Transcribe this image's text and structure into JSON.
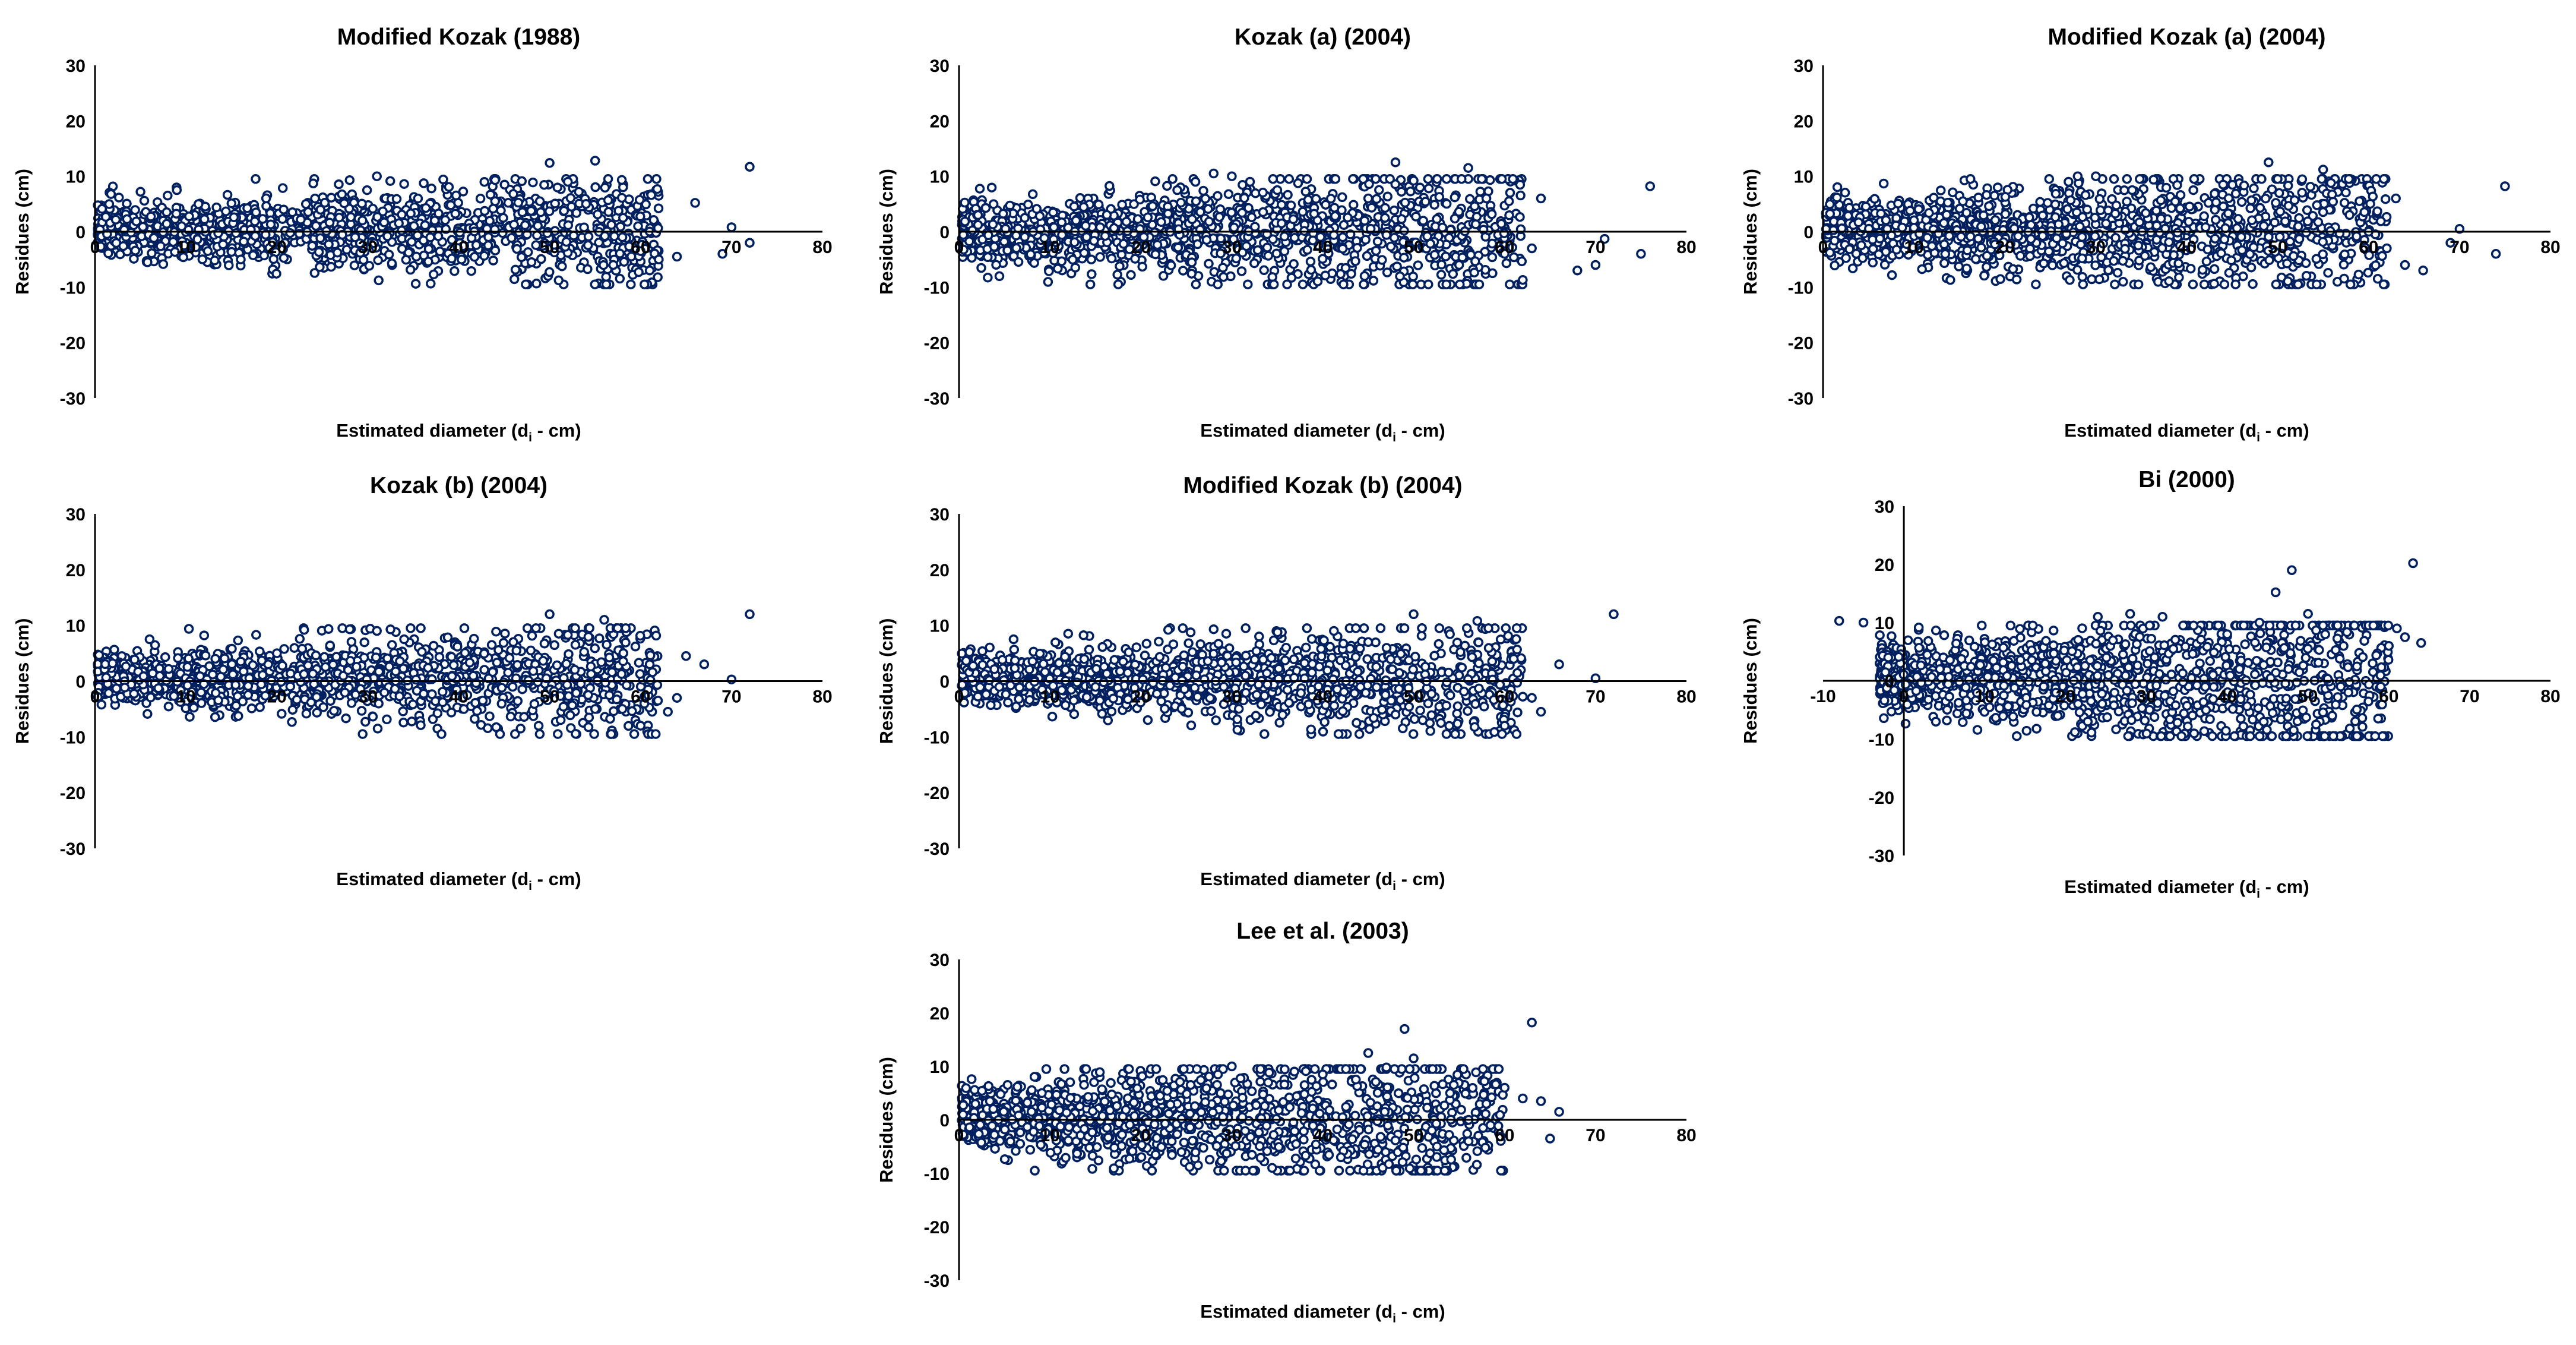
{
  "figure": {
    "point_color": "#002060",
    "axis_color": "#000000",
    "background": "#ffffff"
  },
  "chart_data": [
    {
      "id": "mk1988",
      "type": "scatter",
      "title": "Modified Kozak (1988)",
      "xlabel_main": "Estimated diameter (d",
      "xlabel_sub": "i",
      "xlabel_end": " - cm)",
      "ylabel": "Residues (cm)",
      "xlim": [
        0,
        80
      ],
      "ylim": [
        -30,
        30
      ],
      "xticks": [
        0,
        10,
        20,
        30,
        40,
        50,
        60,
        70,
        80
      ],
      "yticks": [
        30,
        20,
        10,
        0,
        -10,
        -20,
        -30
      ],
      "band": {
        "x_min": 0.3,
        "x_max": 62,
        "mean": 0.3,
        "spread": 2.3,
        "growth": 0.03,
        "n": 1400,
        "seed": 11
      },
      "outliers": [
        [
          24,
          8.7
        ],
        [
          28,
          9.3
        ],
        [
          31,
          10
        ],
        [
          34,
          8.6
        ],
        [
          37,
          7.8
        ],
        [
          50,
          12.4
        ],
        [
          55,
          12.8
        ],
        [
          52,
          9
        ],
        [
          54,
          5
        ],
        [
          57,
          -6
        ],
        [
          60,
          -3.5
        ],
        [
          61,
          -7
        ],
        [
          62,
          -5
        ],
        [
          64,
          -4.5
        ],
        [
          66,
          5.2
        ],
        [
          69,
          -4
        ],
        [
          70,
          0.8
        ],
        [
          72,
          11.7
        ],
        [
          72,
          -2
        ],
        [
          58,
          -1
        ],
        [
          46,
          6.8
        ],
        [
          48,
          -5.5
        ],
        [
          44,
          5.5
        ],
        [
          5,
          7.2
        ],
        [
          9,
          7.5
        ],
        [
          47,
          3.5
        ]
      ]
    },
    {
      "id": "kozak_a_2004",
      "type": "scatter",
      "title": "Kozak (a) (2004)",
      "xlabel_main": "Estimated diameter (d",
      "xlabel_sub": "i",
      "xlabel_end": " - cm)",
      "ylabel": "Residues (cm)",
      "xlim": [
        0,
        80
      ],
      "ylim": [
        -30,
        30
      ],
      "xticks": [
        0,
        10,
        20,
        30,
        40,
        50,
        60,
        70,
        80
      ],
      "yticks": [
        30,
        20,
        10,
        0,
        -10,
        -20,
        -30
      ],
      "band": {
        "x_min": 0.3,
        "x_max": 62,
        "mean": 0,
        "spread": 2.8,
        "growth": 0.03,
        "n": 1400,
        "seed": 23
      },
      "outliers": [
        [
          24,
          7.5
        ],
        [
          26,
          9
        ],
        [
          28,
          10.5
        ],
        [
          30,
          10
        ],
        [
          32,
          9
        ],
        [
          35,
          7.5
        ],
        [
          48,
          12.5
        ],
        [
          50,
          9.2
        ],
        [
          56,
          11.5
        ],
        [
          58,
          6
        ],
        [
          60,
          -4
        ],
        [
          62,
          -8.7
        ],
        [
          63,
          -3
        ],
        [
          64,
          6
        ],
        [
          68,
          -7
        ],
        [
          70,
          -6
        ],
        [
          71,
          -1.3
        ],
        [
          76,
          8.2
        ],
        [
          75,
          -4
        ],
        [
          55,
          -6
        ],
        [
          45,
          6
        ]
      ]
    },
    {
      "id": "mk_a_2004",
      "type": "scatter",
      "title": "Modified Kozak (a) (2004)",
      "xlabel_main": "Estimated diameter (d",
      "xlabel_sub": "i",
      "xlabel_end": " - cm)",
      "ylabel": "Residues (cm)",
      "xlim": [
        0,
        80
      ],
      "ylim": [
        -30,
        30
      ],
      "xticks": [
        0,
        10,
        20,
        30,
        40,
        50,
        60,
        70,
        80
      ],
      "yticks": [
        30,
        20,
        10,
        0,
        -10,
        -20,
        -30
      ],
      "band": {
        "x_min": 0.3,
        "x_max": 62,
        "mean": 0,
        "spread": 2.8,
        "growth": 0.03,
        "n": 1400,
        "seed": 37
      },
      "outliers": [
        [
          27,
          9
        ],
        [
          28,
          10
        ],
        [
          30,
          10
        ],
        [
          32,
          9.5
        ],
        [
          34,
          7.5
        ],
        [
          49,
          12.5
        ],
        [
          50,
          9.5
        ],
        [
          55,
          11.2
        ],
        [
          59,
          5.5
        ],
        [
          61,
          -8.5
        ],
        [
          62,
          -3
        ],
        [
          63,
          6
        ],
        [
          64,
          -6
        ],
        [
          66,
          -7
        ],
        [
          69,
          -2
        ],
        [
          74,
          -4
        ],
        [
          75,
          8.2
        ],
        [
          70,
          0.5
        ],
        [
          44,
          8.5
        ],
        [
          60,
          0
        ]
      ]
    },
    {
      "id": "kozak_b_2004",
      "type": "scatter",
      "title": "Kozak (b) (2004)",
      "xlabel_main": "Estimated diameter (d",
      "xlabel_sub": "i",
      "xlabel_end": " - cm)",
      "ylabel": "Residues (cm)",
      "xlim": [
        0,
        80
      ],
      "ylim": [
        -30,
        30
      ],
      "xticks": [
        0,
        10,
        20,
        30,
        40,
        50,
        60,
        70,
        80
      ],
      "yticks": [
        30,
        20,
        10,
        0,
        -10,
        -20,
        -30
      ],
      "band": {
        "x_min": 0.3,
        "x_max": 62,
        "mean": 0.3,
        "spread": 2.3,
        "growth": 0.03,
        "n": 1400,
        "seed": 41
      },
      "outliers": [
        [
          6,
          7.5
        ],
        [
          12,
          8.2
        ],
        [
          23,
          9.2
        ],
        [
          28,
          9.3
        ],
        [
          31,
          9
        ],
        [
          34,
          7.5
        ],
        [
          50,
          12
        ],
        [
          51,
          8.5
        ],
        [
          56,
          11
        ],
        [
          55,
          -5
        ],
        [
          58,
          -5
        ],
        [
          60,
          -8
        ],
        [
          61,
          3
        ],
        [
          63,
          -5.5
        ],
        [
          64,
          -3
        ],
        [
          65,
          4.5
        ],
        [
          67,
          3
        ],
        [
          70,
          0.3
        ],
        [
          72,
          12
        ],
        [
          46,
          7
        ]
      ]
    },
    {
      "id": "mk_b_2004",
      "type": "scatter",
      "title": "Modified Kozak (b) (2004)",
      "xlabel_main": "Estimated diameter (d",
      "xlabel_sub": "i",
      "xlabel_end": " - cm)",
      "ylabel": "Residues (cm)",
      "xlim": [
        0,
        80
      ],
      "ylim": [
        -30,
        30
      ],
      "xticks": [
        0,
        10,
        20,
        30,
        40,
        50,
        60,
        70,
        80
      ],
      "yticks": [
        30,
        20,
        10,
        0,
        -10,
        -20,
        -30
      ],
      "band": {
        "x_min": 0.3,
        "x_max": 62,
        "mean": 0.3,
        "spread": 2.3,
        "growth": 0.03,
        "n": 1400,
        "seed": 53
      },
      "outliers": [
        [
          6,
          7.5
        ],
        [
          12,
          8.5
        ],
        [
          23,
          9.2
        ],
        [
          28,
          9.3
        ],
        [
          33,
          8
        ],
        [
          45,
          7
        ],
        [
          50,
          12
        ],
        [
          53,
          -7.5
        ],
        [
          57,
          10.8
        ],
        [
          60,
          -8
        ],
        [
          61,
          4
        ],
        [
          63,
          -3
        ],
        [
          64,
          -5.5
        ],
        [
          66,
          3
        ],
        [
          70,
          0.5
        ],
        [
          72,
          12
        ],
        [
          48,
          -6
        ]
      ]
    },
    {
      "id": "bi_2000",
      "type": "scatter",
      "title": "Bi (2000)",
      "xlabel_main": "Estimated diameter (d",
      "xlabel_sub": "i",
      "xlabel_end": " - cm)",
      "ylabel": "Residues (cm)",
      "xlim": [
        -10,
        80
      ],
      "ylim": [
        -30,
        30
      ],
      "xticks": [
        -10,
        0,
        10,
        20,
        30,
        40,
        50,
        60,
        70,
        80
      ],
      "yticks": [
        30,
        20,
        10,
        0,
        -10,
        -20,
        -30
      ],
      "band": {
        "x_min": -3,
        "x_max": 60,
        "mean": 0.5,
        "spread": 3.0,
        "growth": 0.045,
        "n": 1400,
        "seed": 67
      },
      "outliers": [
        [
          -8,
          10.3
        ],
        [
          -5,
          10
        ],
        [
          24,
          11
        ],
        [
          28,
          11.5
        ],
        [
          32,
          11
        ],
        [
          46,
          15.2
        ],
        [
          48,
          19
        ],
        [
          50,
          11.5
        ],
        [
          51,
          -7.5
        ],
        [
          53,
          -6
        ],
        [
          55,
          -2
        ],
        [
          58,
          3
        ],
        [
          59,
          -1
        ],
        [
          60,
          6
        ],
        [
          61,
          9
        ],
        [
          62,
          7.5
        ],
        [
          63,
          20.2
        ],
        [
          64,
          6.5
        ],
        [
          44,
          10
        ],
        [
          40,
          8
        ]
      ]
    },
    {
      "id": "lee_2003",
      "type": "scatter",
      "title": "Lee et al. (2003)",
      "xlabel_main": "Estimated diameter (d",
      "xlabel_sub": "i",
      "xlabel_end": " - cm)",
      "ylabel": "Residues (cm)",
      "xlim": [
        0,
        80
      ],
      "ylim": [
        -30,
        30
      ],
      "xticks": [
        0,
        10,
        20,
        30,
        40,
        50,
        60,
        70,
        80
      ],
      "yticks": [
        30,
        20,
        10,
        0,
        -10,
        -20,
        -30
      ],
      "band": {
        "x_min": 0.3,
        "x_max": 60,
        "mean": 0.2,
        "spread": 2.8,
        "growth": 0.04,
        "n": 1400,
        "seed": 79
      },
      "outliers": [
        [
          30,
          10
        ],
        [
          40,
          8.5
        ],
        [
          45,
          12.5
        ],
        [
          47,
          9.8
        ],
        [
          49,
          17
        ],
        [
          50,
          11.5
        ],
        [
          52,
          -2
        ],
        [
          54,
          5
        ],
        [
          58,
          3
        ],
        [
          60,
          6
        ],
        [
          62,
          4
        ],
        [
          63,
          18.2
        ],
        [
          64,
          3.5
        ],
        [
          65,
          -3.5
        ],
        [
          66,
          1.5
        ],
        [
          42,
          -7
        ],
        [
          38,
          6.5
        ]
      ]
    }
  ]
}
